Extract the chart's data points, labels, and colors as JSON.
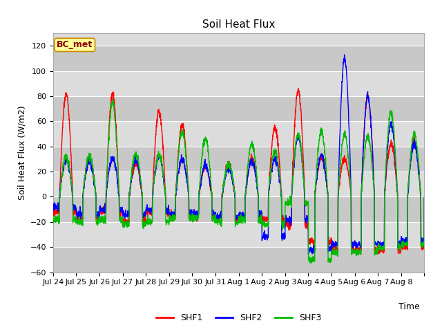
{
  "title": "Soil Heat Flux",
  "ylabel": "Soil Heat Flux (W/m2)",
  "xlabel": "Time",
  "ylim": [
    -60,
    130
  ],
  "yticks": [
    -60,
    -40,
    -20,
    0,
    20,
    40,
    60,
    80,
    100,
    120
  ],
  "colors": {
    "SHF1": "#ff0000",
    "SHF2": "#0000ff",
    "SHF3": "#00bb00"
  },
  "bg_light": "#dcdcdc",
  "bg_dark": "#c8c8c8",
  "legend_box_label": "BC_met",
  "legend_box_bg": "#ffff99",
  "legend_box_edge": "#cc8800",
  "x_tick_labels": [
    "Jul 24",
    "Jul 25",
    "Jul 26",
    "Jul 27",
    "Jul 28",
    "Jul 29",
    "Jul 30",
    "Jul 31",
    "Aug 1",
    "Aug 2",
    "Aug 3",
    "Aug 4",
    "Aug 5",
    "Aug 6",
    "Aug 7",
    "Aug 8"
  ],
  "title_fontsize": 11,
  "axis_label_fontsize": 9,
  "tick_fontsize": 8,
  "line_width": 1.0
}
